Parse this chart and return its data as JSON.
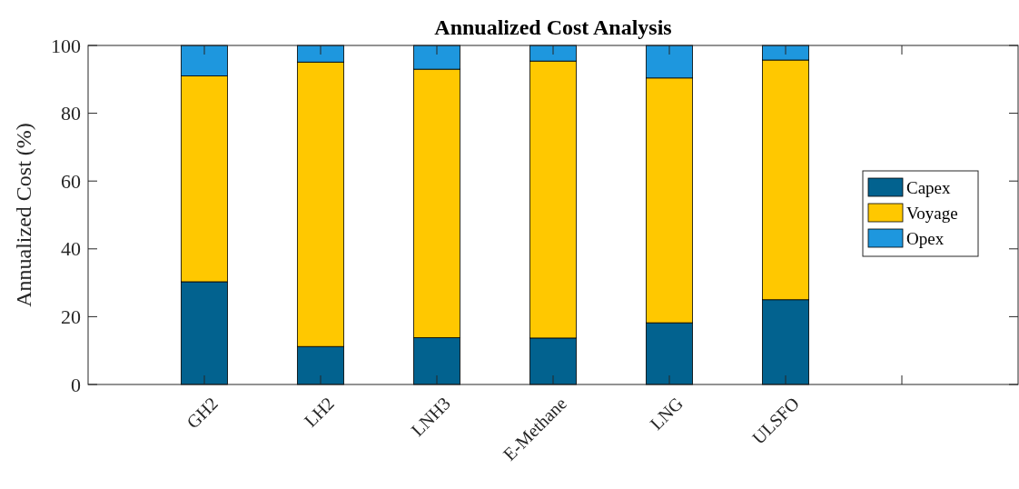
{
  "chart_data": {
    "type": "bar",
    "stacked": true,
    "title": "Annualized Cost Analysis",
    "ylabel": "Annualized Cost (%)",
    "categories": [
      "GH2",
      "LH2",
      "LNH3",
      "E-Methane",
      "LNG",
      "ULSFO",
      null
    ],
    "series": [
      {
        "name": "Capex",
        "color": "#02628f",
        "values": [
          30.3,
          11.2,
          13.8,
          13.7,
          18.2,
          25.0,
          0
        ]
      },
      {
        "name": "Voyage",
        "color": "#ffc800",
        "values": [
          60.7,
          83.9,
          79.2,
          81.7,
          72.2,
          70.7,
          0
        ]
      },
      {
        "name": "Opex",
        "color": "#1e97de",
        "values": [
          9.0,
          4.9,
          7.0,
          4.6,
          9.6,
          4.3,
          0
        ]
      }
    ],
    "ylim": [
      0,
      100
    ],
    "yticks": [
      0,
      20,
      40,
      60,
      80,
      100
    ],
    "legend": "right",
    "grid": false
  }
}
